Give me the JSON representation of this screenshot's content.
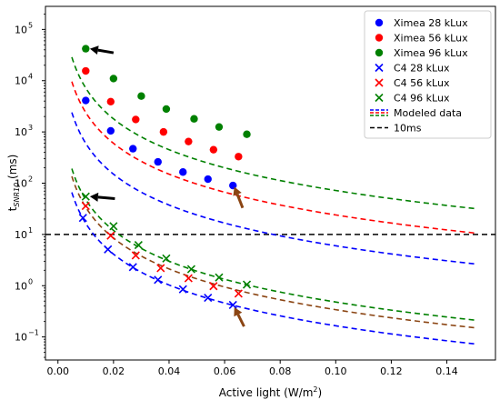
{
  "chart_data": {
    "type": "scatter",
    "xlabel": "Active light (W/m",
    "xlabel_sup": "2",
    "xlabel_end": ")",
    "ylabel_main": "t",
    "ylabel_sub": "SNR10",
    "ylabel_unit": " (ms)",
    "xlim": [
      -0.0045,
      0.1575
    ],
    "ylim_log10": [
      -1.45,
      5.45
    ],
    "x_ticks": [
      0.0,
      0.02,
      0.04,
      0.06,
      0.08,
      0.1,
      0.12,
      0.14
    ],
    "x_tick_labels": [
      "0.00",
      "0.02",
      "0.04",
      "0.06",
      "0.08",
      "0.10",
      "0.12",
      "0.14"
    ],
    "y_ticks_log10": [
      -1,
      0,
      1,
      2,
      3,
      4,
      5
    ],
    "y_tick_base": "10",
    "y_tick_exps": [
      "−1",
      "0",
      "1",
      "2",
      "3",
      "4",
      "5"
    ],
    "grid": false,
    "legend_position": "top-right",
    "reference_line": {
      "value": 10,
      "label": "10ms",
      "color": "#000000"
    },
    "model_curve_x": [
      0.005,
      0.15
    ],
    "series": [
      {
        "name": "Ximea 28 kLux",
        "marker": "circle",
        "color": "#0000ff",
        "x": [
          0.01,
          0.019,
          0.027,
          0.036,
          0.045,
          0.054,
          0.063
        ],
        "y": [
          4100,
          1050,
          470,
          260,
          165,
          120,
          90
        ],
        "model_k": 0.06
      },
      {
        "name": "Ximea 56 kLux",
        "marker": "circle",
        "color": "#ff0000",
        "x": [
          0.01,
          0.019,
          0.028,
          0.038,
          0.047,
          0.056,
          0.065
        ],
        "y": [
          15500,
          3900,
          1750,
          1000,
          650,
          450,
          330
        ],
        "model_k": 0.24
      },
      {
        "name": "Ximea 96 kLux",
        "marker": "circle",
        "color": "#008000",
        "x": [
          0.01,
          0.02,
          0.03,
          0.039,
          0.049,
          0.058,
          0.068
        ],
        "y": [
          42000,
          11000,
          5000,
          2800,
          1800,
          1250,
          900
        ],
        "model_k": 0.72
      },
      {
        "name": "C4 28 kLux",
        "marker": "x",
        "color": "#0000ff",
        "x": [
          0.009,
          0.018,
          0.027,
          0.036,
          0.045,
          0.054,
          0.063
        ],
        "y": [
          21,
          5.1,
          2.3,
          1.3,
          0.85,
          0.58,
          0.42
        ],
        "model_k": 0.00165
      },
      {
        "name": "C4 56 kLux",
        "marker": "x",
        "color": "#ff0000",
        "x": [
          0.01,
          0.019,
          0.028,
          0.037,
          0.047,
          0.056,
          0.065
        ],
        "y": [
          36,
          9.5,
          3.9,
          2.2,
          1.4,
          0.98,
          0.7
        ],
        "model_k": 0.0034
      },
      {
        "name": "C4 96 kLux",
        "marker": "x",
        "color": "#008000",
        "x": [
          0.01,
          0.02,
          0.029,
          0.039,
          0.048,
          0.058,
          0.068
        ],
        "y": [
          55,
          14.5,
          6.2,
          3.4,
          2.1,
          1.45,
          1.05
        ],
        "model_k": 0.0048
      }
    ],
    "model_curve_colors": [
      "#0000ff",
      "#ff0000",
      "#008000",
      "#0000ff",
      "#8b4513",
      "#008000"
    ],
    "legend": [
      {
        "label": "Ximea 28 kLux",
        "kind": "circle",
        "color": "#0000ff"
      },
      {
        "label": "Ximea 56 kLux",
        "kind": "circle",
        "color": "#ff0000"
      },
      {
        "label": "Ximea 96 kLux",
        "kind": "circle",
        "color": "#008000"
      },
      {
        "label": "C4 28 kLux",
        "kind": "x",
        "color": "#0000ff"
      },
      {
        "label": "C4 56 kLux",
        "kind": "x",
        "color": "#ff0000"
      },
      {
        "label": "C4 96 kLux",
        "kind": "x",
        "color": "#008000"
      },
      {
        "label": "Modeled data",
        "kind": "modeled",
        "color": "#0000ff"
      },
      {
        "label": "10ms",
        "kind": "hline",
        "color": "#000000"
      }
    ],
    "annotations": [
      {
        "kind": "arrow",
        "color": "#000000",
        "from": [
          0.02,
          35000
        ],
        "to": [
          0.0115,
          42000
        ]
      },
      {
        "kind": "arrow",
        "color": "#000000",
        "from": [
          0.0205,
          50
        ],
        "to": [
          0.0115,
          55
        ]
      },
      {
        "kind": "arrow",
        "color": "#8b4513",
        "from": [
          0.0665,
          33
        ],
        "to": [
          0.0635,
          85
        ]
      },
      {
        "kind": "arrow",
        "color": "#8b4513",
        "from": [
          0.067,
          0.16
        ],
        "to": [
          0.0635,
          0.38
        ]
      }
    ]
  }
}
